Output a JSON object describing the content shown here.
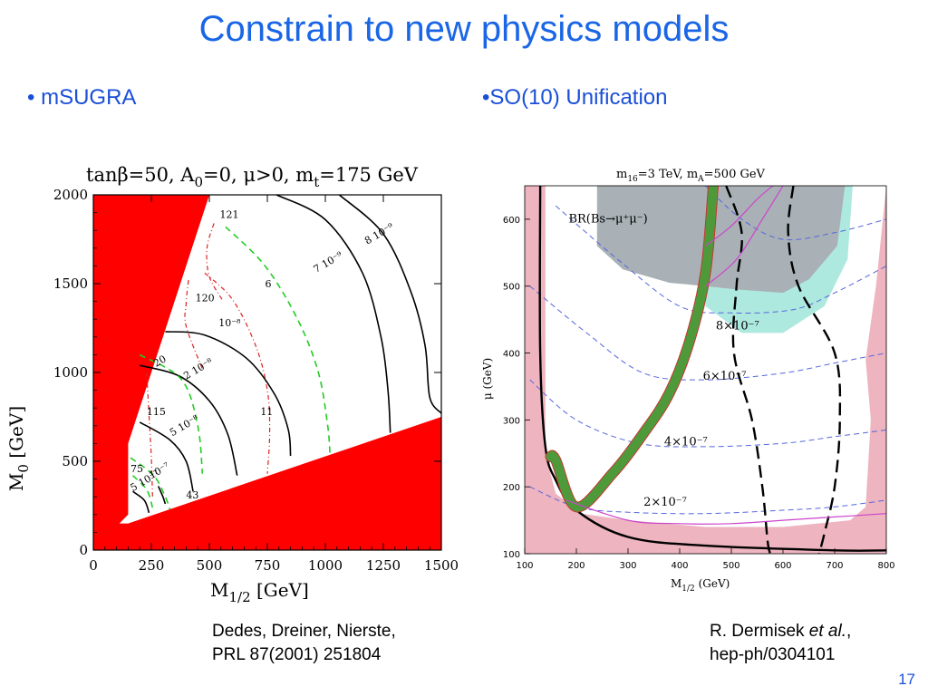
{
  "slide": {
    "title": "Constrain to new physics models",
    "bullet_left": "• mSUGRA",
    "bullet_right": "•SO(10) Unification",
    "page_number": "17",
    "citation_left": [
      "Dedes, Dreiner, Nierste,",
      "PRL 87(2001) 251804"
    ],
    "citation_right_prefix": "R. Dermisek ",
    "citation_right_etal": "et al.",
    "citation_right_suffix": ",",
    "citation_right_line2": "hep-ph/0304101"
  },
  "colors": {
    "title": "#1a66e6",
    "bullet": "#1a4fd6",
    "excluded_red": "#ff0000",
    "pink_region": "#eeb4bf",
    "gray_region": "#a9b1b6",
    "cyan_region": "#aee9df",
    "green_band": "#4e9a3a",
    "dashed_green": "#22cc22",
    "dashdot_red": "#dd2222",
    "dashed_blue": "#5566dd",
    "magenta": "#cc44cc"
  },
  "chart_data": [
    {
      "type": "line",
      "title": "tanβ=50, A0=0, μ>0, mt=175 GeV",
      "title_parts": {
        "tan": "tan",
        "beta_eq": "β=50, A",
        "sub0": "0",
        "rest": "=0, μ>0, m",
        "subt": "t",
        "end": "=175 GeV"
      },
      "xlabel": {
        "base": "M",
        "sub": "1/2",
        "unit": " [GeV]"
      },
      "ylabel": {
        "base": "M",
        "sub": "0",
        "unit": " [GeV]"
      },
      "xlim": [
        0,
        1500
      ],
      "ylim": [
        0,
        2000
      ],
      "xticks": [
        0,
        250,
        500,
        750,
        1000,
        1250,
        1500
      ],
      "yticks": [
        0,
        500,
        1000,
        1500,
        2000
      ],
      "regions": {
        "excluded_upper_left": [
          [
            0,
            2000
          ],
          [
            500,
            2000
          ],
          [
            150,
            600
          ],
          [
            150,
            200
          ],
          [
            0,
            0
          ]
        ],
        "excluded_lower_right": [
          [
            150,
            150
          ],
          [
            1500,
            750
          ],
          [
            1500,
            0
          ],
          [
            0,
            0
          ],
          [
            0,
            150
          ]
        ]
      },
      "series": [
        {
          "name": "8 10^-9",
          "style": "solid-black",
          "points": [
            [
              1060,
              2000
            ],
            [
              1250,
              1780
            ],
            [
              1370,
              1450
            ],
            [
              1430,
              1150
            ],
            [
              1450,
              860
            ],
            [
              1500,
              770
            ]
          ]
        },
        {
          "name": "7 10^-9",
          "style": "solid-black",
          "points": [
            [
              790,
              2000
            ],
            [
              1000,
              1860
            ],
            [
              1160,
              1560
            ],
            [
              1240,
              1200
            ],
            [
              1270,
              900
            ],
            [
              1280,
              660
            ]
          ]
        },
        {
          "name": "6",
          "style": "dashed-green",
          "points": [
            [
              570,
              1820
            ],
            [
              740,
              1600
            ],
            [
              880,
              1300
            ],
            [
              970,
              1000
            ],
            [
              1010,
              700
            ],
            [
              1020,
              540
            ]
          ]
        },
        {
          "name": "11",
          "style": "dashdot-red",
          "points": [
            [
              480,
              1560
            ],
            [
              600,
              1410
            ],
            [
              700,
              1150
            ],
            [
              750,
              900
            ],
            [
              760,
              660
            ],
            [
              750,
              430
            ]
          ]
        },
        {
          "name": "10^-8",
          "style": "solid-black",
          "points": [
            [
              310,
              1230
            ],
            [
              480,
              1210
            ],
            [
              660,
              1080
            ],
            [
              780,
              880
            ],
            [
              840,
              680
            ],
            [
              850,
              530
            ]
          ]
        },
        {
          "name": "121",
          "style": "dashdot-red",
          "points": [
            [
              520,
              1840
            ],
            [
              490,
              1700
            ],
            [
              500,
              1540
            ],
            [
              560,
              1400
            ]
          ]
        },
        {
          "name": "120",
          "style": "dashdot-red",
          "points": [
            [
              410,
              1520
            ],
            [
              400,
              1390
            ],
            [
              400,
              1260
            ],
            [
              470,
              1020
            ]
          ]
        },
        {
          "name": "2 10^-8",
          "style": "solid-black",
          "points": [
            [
              200,
              1040
            ],
            [
              370,
              980
            ],
            [
              500,
              840
            ],
            [
              580,
              650
            ],
            [
              620,
              420
            ]
          ]
        },
        {
          "name": "115",
          "style": "dashdot-red",
          "points": [
            [
              230,
              1000
            ],
            [
              240,
              760
            ],
            [
              250,
              520
            ],
            [
              255,
              300
            ]
          ]
        },
        {
          "name": "20",
          "style": "dashed-green",
          "points": [
            [
              200,
              1100
            ],
            [
              380,
              960
            ],
            [
              450,
              700
            ],
            [
              470,
              430
            ]
          ]
        },
        {
          "name": "5 10^-8",
          "style": "solid-black",
          "points": [
            [
              200,
              720
            ],
            [
              330,
              620
            ],
            [
              400,
              500
            ],
            [
              430,
              330
            ]
          ]
        },
        {
          "name": "10^-7",
          "style": "dashed-green",
          "points": [
            [
              160,
              520
            ],
            [
              260,
              420
            ],
            [
              310,
              300
            ],
            [
              330,
              230
            ]
          ]
        },
        {
          "name": "75",
          "style": "dashed-green",
          "points": [
            [
              170,
              420
            ],
            [
              230,
              340
            ],
            [
              255,
              240
            ]
          ]
        },
        {
          "name": "5 10^-7",
          "style": "solid-black",
          "points": [
            [
              170,
              330
            ],
            [
              220,
              280
            ],
            [
              240,
              210
            ]
          ]
        },
        {
          "name": "43",
          "style": "solid-black",
          "points": [
            [
              280,
              360
            ],
            [
              300,
              300
            ],
            [
              310,
              260
            ]
          ]
        }
      ],
      "annotations": [
        "121",
        "8 10⁻⁹",
        "7 10⁻⁹",
        "6",
        "120",
        "10⁻⁸",
        "20",
        "2 10⁻⁸",
        "11",
        "115",
        "5 10⁻⁸",
        "75",
        "10⁻⁷",
        "5 10⁻⁷",
        "43"
      ]
    },
    {
      "type": "line",
      "title": "m16=3 TeV, mA=500 GeV",
      "title_parts": {
        "m": "m",
        "sub16": "16",
        "mid": "=3 TeV,  m",
        "subA": "A",
        "end": "=500 GeV"
      },
      "xlabel": {
        "base": "M",
        "sub": "1/2",
        "unit": " (GeV)"
      },
      "ylabel": "μ (GeV)",
      "xlim": [
        100,
        800
      ],
      "ylim": [
        100,
        650
      ],
      "xticks": [
        100,
        200,
        300,
        400,
        500,
        600,
        700,
        800
      ],
      "yticks": [
        100,
        200,
        300,
        400,
        500,
        600
      ],
      "regions": {
        "gray": [
          [
            240,
            650
          ],
          [
            240,
            560
          ],
          [
            290,
            525
          ],
          [
            380,
            505
          ],
          [
            450,
            500
          ],
          [
            510,
            495
          ],
          [
            600,
            490
          ],
          [
            650,
            510
          ],
          [
            705,
            560
          ],
          [
            720,
            650
          ]
        ],
        "cyan": [
          [
            440,
            650
          ],
          [
            450,
            470
          ],
          [
            520,
            430
          ],
          [
            600,
            430
          ],
          [
            680,
            470
          ],
          [
            725,
            540
          ],
          [
            735,
            650
          ]
        ],
        "white": [
          [
            140,
            650
          ],
          [
            140,
            250
          ],
          [
            160,
            190
          ],
          [
            210,
            160
          ],
          [
            300,
            150
          ],
          [
            450,
            140
          ],
          [
            600,
            140
          ],
          [
            730,
            150
          ],
          [
            760,
            170
          ],
          [
            770,
            300
          ],
          [
            760,
            390
          ],
          [
            780,
            500
          ],
          [
            800,
            650
          ]
        ]
      },
      "series": [
        {
          "name": "2×10^-7",
          "style": "dashed-blue",
          "points": [
            [
              110,
              200
            ],
            [
              200,
              170
            ],
            [
              300,
              162
            ],
            [
              450,
              160
            ],
            [
              600,
              165
            ],
            [
              700,
              170
            ],
            [
              800,
              180
            ]
          ]
        },
        {
          "name": "4×10^-7",
          "style": "dashed-blue",
          "points": [
            [
              110,
              360
            ],
            [
              200,
              300
            ],
            [
              320,
              265
            ],
            [
              450,
              260
            ],
            [
              600,
              265
            ],
            [
              700,
              275
            ],
            [
              800,
              285
            ]
          ]
        },
        {
          "name": "6×10^-7",
          "style": "dashed-blue",
          "points": [
            [
              110,
              500
            ],
            [
              220,
              430
            ],
            [
              330,
              370
            ],
            [
              450,
              360
            ],
            [
              600,
              370
            ],
            [
              700,
              385
            ],
            [
              800,
              400
            ]
          ]
        },
        {
          "name": "8×10^-7",
          "style": "dashed-blue",
          "points": [
            [
              160,
              620
            ],
            [
              280,
              540
            ],
            [
              400,
              470
            ],
            [
              500,
              460
            ],
            [
              620,
              465
            ],
            [
              700,
              490
            ],
            [
              800,
              530
            ]
          ]
        },
        {
          "name": "BR(Bs→μ+μ-)",
          "style": "dashed-blue",
          "points": [
            [
              450,
              650
            ],
            [
              520,
              600
            ],
            [
              600,
              570
            ],
            [
              700,
              580
            ],
            [
              800,
              600
            ]
          ]
        },
        {
          "name": "",
          "style": "solid-black-thick",
          "points": [
            [
              130,
              650
            ],
            [
              130,
              400
            ],
            [
              140,
              260
            ],
            [
              160,
              210
            ],
            [
              200,
              165
            ],
            [
              300,
              125
            ],
            [
              450,
              112
            ],
            [
              700,
              105
            ],
            [
              800,
              105
            ]
          ]
        },
        {
          "name": "",
          "style": "dashed-black-thick-left",
          "points": [
            [
              490,
              650
            ],
            [
              520,
              580
            ],
            [
              510,
              500
            ],
            [
              505,
              400
            ],
            [
              540,
              300
            ],
            [
              560,
              200
            ],
            [
              570,
              120
            ],
            [
              575,
              100
            ]
          ]
        },
        {
          "name": "",
          "style": "dashed-black-thick-right",
          "points": [
            [
              620,
              650
            ],
            [
              610,
              580
            ],
            [
              630,
              500
            ],
            [
              700,
              400
            ],
            [
              710,
              300
            ],
            [
              700,
              200
            ],
            [
              680,
              130
            ],
            [
              670,
              100
            ]
          ]
        },
        {
          "name": "",
          "style": "green-band",
          "points": [
            [
              150,
              245
            ],
            [
              160,
              240
            ],
            [
              200,
              170
            ],
            [
              270,
              220
            ],
            [
              330,
              280
            ],
            [
              380,
              340
            ],
            [
              420,
              420
            ],
            [
              450,
              520
            ],
            [
              465,
              650
            ]
          ]
        },
        {
          "name": "",
          "style": "magenta",
          "points": [
            [
              180,
              180
            ],
            [
              300,
              150
            ],
            [
              400,
              145
            ],
            [
              500,
              145
            ],
            [
              600,
              150
            ],
            [
              700,
              155
            ],
            [
              800,
              160
            ]
          ]
        },
        {
          "name": "",
          "style": "magenta",
          "points": [
            [
              450,
              560
            ],
            [
              500,
              590
            ],
            [
              550,
              630
            ],
            [
              580,
              650
            ]
          ]
        },
        {
          "name": "",
          "style": "magenta",
          "points": [
            [
              450,
              500
            ],
            [
              510,
              540
            ],
            [
              560,
              600
            ],
            [
              600,
              650
            ]
          ]
        }
      ],
      "annotations": [
        "BR(Bs→μ⁺μ⁻)",
        "8×10⁻⁷",
        "6×10⁻⁷",
        "4×10⁻⁷",
        "2×10⁻⁷"
      ]
    }
  ]
}
